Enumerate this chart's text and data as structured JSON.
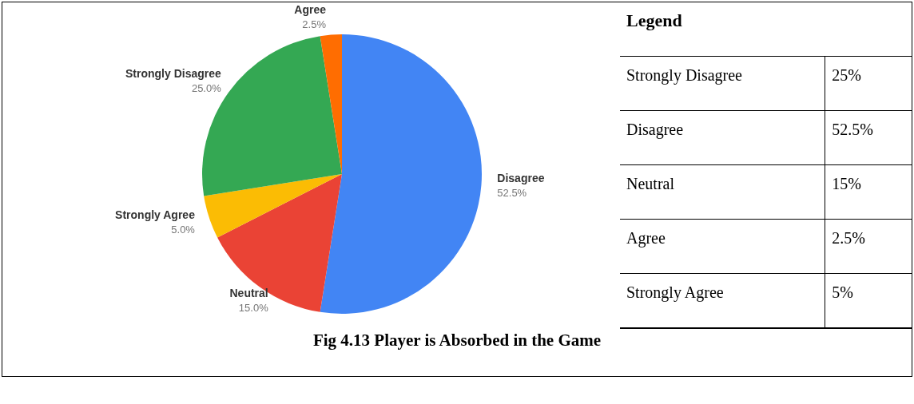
{
  "chart_data": [
    {
      "type": "pie",
      "title": "Fig 4.13 Player is Absorbed in the Game",
      "categories": [
        "Disagree",
        "Neutral",
        "Strongly Agree",
        "Strongly Disagree",
        "Agree"
      ],
      "values": [
        52.5,
        15.0,
        5.0,
        25.0,
        2.5
      ],
      "colors": [
        "#4285f4",
        "#ea4335",
        "#fbbc04",
        "#34a853",
        "#ff6d01"
      ],
      "value_labels": [
        "52.5%",
        "15.0%",
        "5.0%",
        "25.0%",
        "2.5%"
      ]
    },
    {
      "type": "other",
      "title": "Legend",
      "annotations": [
        "Strongly Disagree",
        "25%",
        "Disagree",
        "52.5%",
        "Neutral",
        "15%",
        "Agree",
        "2.5%",
        "Strongly Agree",
        "5%"
      ]
    }
  ]
}
